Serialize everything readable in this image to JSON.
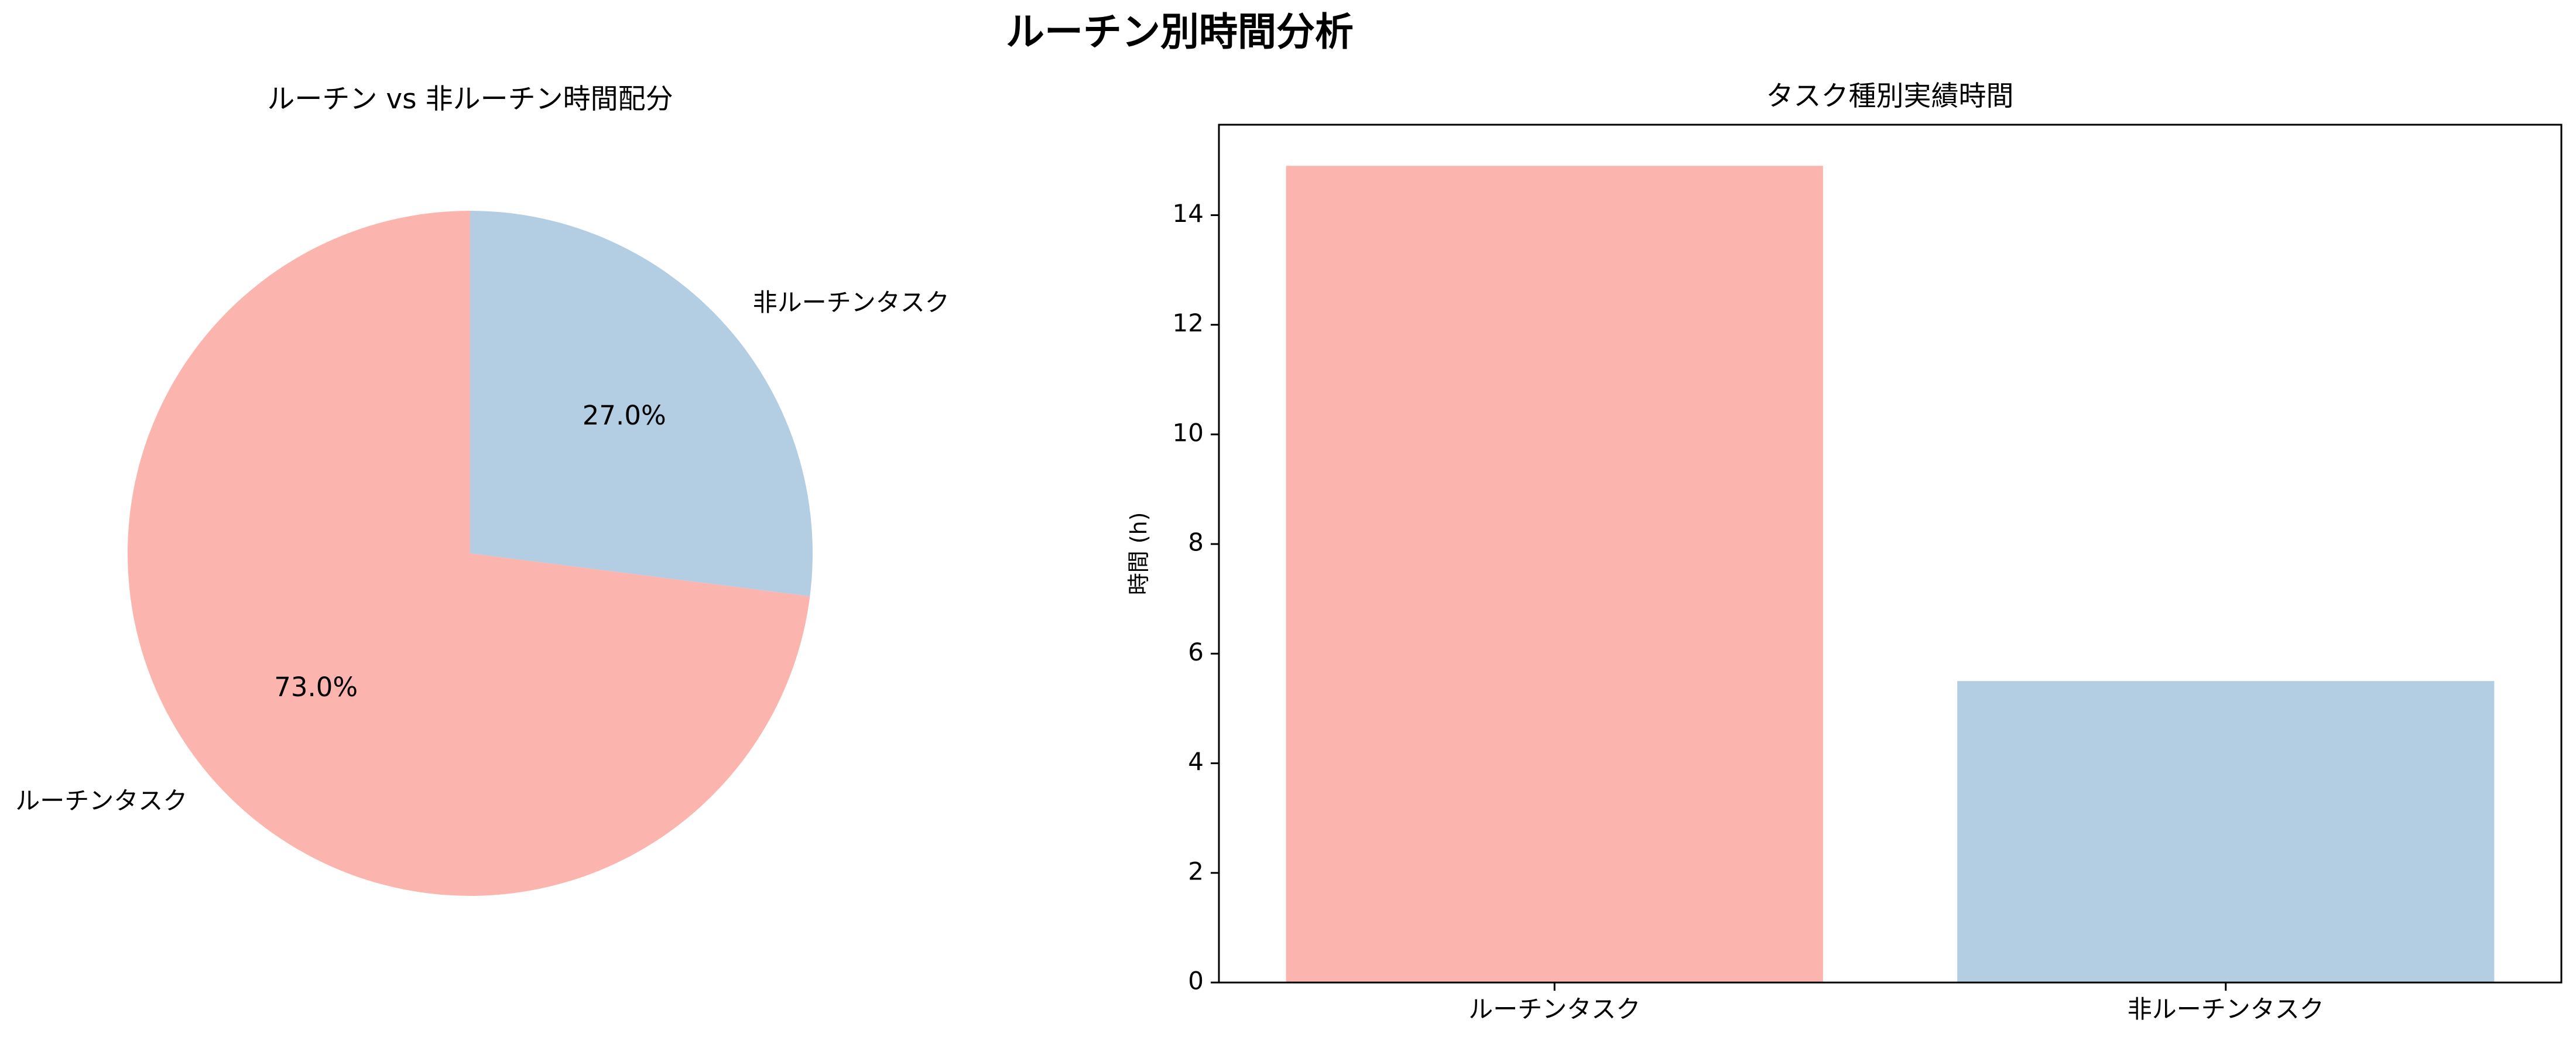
{
  "figure": {
    "title": "ルーチン別時間分析"
  },
  "chart_data": [
    {
      "type": "pie",
      "title": "ルーチン vs 非ルーチン時間配分",
      "labels": [
        "ルーチンタスク",
        "非ルーチンタスク"
      ],
      "values": [
        73.0,
        27.0
      ],
      "percent_labels": [
        "73.0%",
        "27.0%"
      ],
      "colors": [
        "#fbb4ae",
        "#b3cde3"
      ],
      "start_angle": 90,
      "direction": "counterclockwise"
    },
    {
      "type": "bar",
      "title": "タスク種別実績時間",
      "categories": [
        "ルーチンタスク",
        "非ルーチンタスク"
      ],
      "values": [
        14.9,
        5.5
      ],
      "colors": [
        "#fbb4ae",
        "#b3cde3"
      ],
      "xlabel": "",
      "ylabel": "時間 (h)",
      "ylim": [
        0,
        15.65
      ],
      "yticks": [
        0,
        2,
        4,
        6,
        8,
        10,
        12,
        14
      ],
      "grid": false
    }
  ]
}
